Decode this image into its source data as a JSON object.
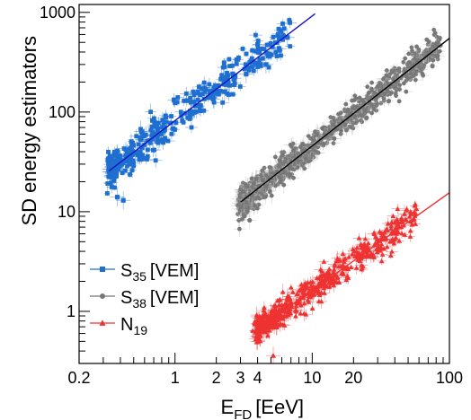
{
  "chart_data": {
    "type": "scatter",
    "xlabel": "E",
    "xlabel_sub": "FD",
    "xlabel_unit": "[EeV]",
    "ylabel": "SD energy estimators",
    "x_scale": "log",
    "y_scale": "log",
    "xlim": [
      0.2,
      100
    ],
    "ylim": [
      0.3,
      1200
    ],
    "x_ticks": [
      0.2,
      1,
      2,
      3,
      4,
      10,
      20,
      100
    ],
    "x_tick_labels": [
      "0.2",
      "1",
      "2",
      "3",
      "4",
      "10",
      "20",
      "100"
    ],
    "y_ticks": [
      1,
      10,
      100,
      1000
    ],
    "y_tick_labels": [
      "1",
      "10",
      "100",
      "1000"
    ],
    "grid": false,
    "legend": "bottom-left",
    "series": [
      {
        "name": "S",
        "name_sub": "35",
        "name_unit": "[VEM]",
        "color": "#1f6fd0",
        "fit_color": "#1414c8",
        "marker": "square",
        "fit": {
          "slope": 1.05,
          "intercept_at_1EeV": 82,
          "x_range": [
            0.33,
            10.5
          ]
        },
        "x_range": [
          0.33,
          6.8
        ],
        "scatter_fraction": 0.2,
        "n_points": 380,
        "outliers": [
          [
            0.42,
            13
          ],
          [
            0.38,
            14
          ],
          [
            6.6,
            560
          ],
          [
            4.6,
            300
          ],
          [
            3.3,
            240
          ],
          [
            1.9,
            135
          ],
          [
            2.3,
            160
          ]
        ]
      },
      {
        "name": "S",
        "name_sub": "38",
        "name_unit": "[VEM]",
        "color": "#777777",
        "fit_color": "#000000",
        "marker": "circle",
        "fit": {
          "slope": 1.08,
          "intercept_at_1EeV": 3.8,
          "x_range": [
            3.0,
            100
          ]
        },
        "x_range": [
          3.0,
          85
        ],
        "scatter_fraction": 0.16,
        "n_points": 1100,
        "outliers": [
          [
            3.2,
            9
          ],
          [
            3.5,
            8.2
          ],
          [
            80,
            480
          ],
          [
            58,
            330
          ],
          [
            70,
            390
          ]
        ]
      },
      {
        "name": "N",
        "name_sub": "19",
        "name_unit": "",
        "color": "#ee3333",
        "fit_color": "#ee3333",
        "marker": "triangle",
        "fit": {
          "slope": 0.98,
          "intercept_at_1EeV": 0.17,
          "x_range": [
            4.0,
            100
          ]
        },
        "x_range": [
          3.9,
          58
        ],
        "scatter_fraction": 0.17,
        "n_points": 520,
        "outliers": [
          [
            5.2,
            0.36
          ],
          [
            4.0,
            0.5
          ],
          [
            47,
            9.5
          ],
          [
            38,
            7.8
          ]
        ]
      }
    ]
  }
}
